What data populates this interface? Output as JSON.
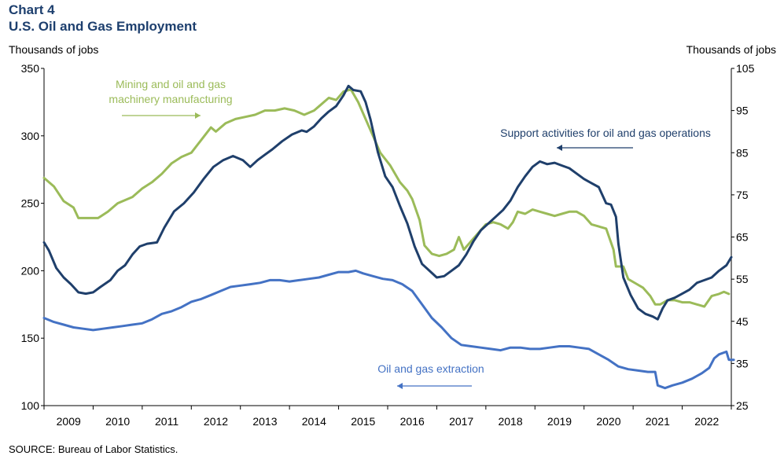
{
  "header": {
    "chart_number": "Chart 4",
    "title": "U.S. Oil and Gas Employment"
  },
  "axes": {
    "left_title": "Thousands  of jobs",
    "right_title": "Thousands  of jobs"
  },
  "source": "SOURCE: Bureau of Labor Statistics.",
  "colors": {
    "mining": "#9bbb59",
    "support": "#1f3f6b",
    "extraction": "#4472c4",
    "title": "#1d3f6e"
  },
  "chart_data": {
    "type": "line",
    "x_labels": [
      "2009",
      "2010",
      "2011",
      "2012",
      "2013",
      "2014",
      "2015",
      "2016",
      "2017",
      "2018",
      "2019",
      "2020",
      "2021",
      "2022"
    ],
    "x_range": [
      2008.5,
      2022.5
    ],
    "left_axis": {
      "ylim": [
        100,
        350
      ],
      "ticks": [
        100,
        150,
        200,
        250,
        300,
        350
      ]
    },
    "right_axis": {
      "ylim": [
        25,
        105
      ],
      "ticks": [
        25,
        35,
        45,
        55,
        65,
        75,
        85,
        95,
        105
      ]
    },
    "series": [
      {
        "name": "Mining and oil and gas machinery manufacturing",
        "axis": "right",
        "color": "#9bbb59",
        "points": [
          [
            2008.5,
            79
          ],
          [
            2008.7,
            77
          ],
          [
            2008.9,
            73.5
          ],
          [
            2009.1,
            72
          ],
          [
            2009.2,
            69.5
          ],
          [
            2009.4,
            69.5
          ],
          [
            2009.6,
            69.5
          ],
          [
            2009.8,
            71
          ],
          [
            2010.0,
            73
          ],
          [
            2010.3,
            74.5
          ],
          [
            2010.5,
            76.5
          ],
          [
            2010.7,
            78
          ],
          [
            2010.9,
            80
          ],
          [
            2011.1,
            82.5
          ],
          [
            2011.3,
            84
          ],
          [
            2011.5,
            85
          ],
          [
            2011.7,
            88
          ],
          [
            2011.9,
            91
          ],
          [
            2012.0,
            90
          ],
          [
            2012.2,
            92
          ],
          [
            2012.4,
            93
          ],
          [
            2012.6,
            93.5
          ],
          [
            2012.8,
            94
          ],
          [
            2013.0,
            95
          ],
          [
            2013.2,
            95
          ],
          [
            2013.4,
            95.5
          ],
          [
            2013.6,
            95
          ],
          [
            2013.8,
            94
          ],
          [
            2014.0,
            95
          ],
          [
            2014.1,
            96
          ],
          [
            2014.3,
            98
          ],
          [
            2014.45,
            97.5
          ],
          [
            2014.6,
            99.5
          ],
          [
            2014.75,
            100
          ],
          [
            2014.9,
            97
          ],
          [
            2015.05,
            93
          ],
          [
            2015.2,
            89
          ],
          [
            2015.35,
            85
          ],
          [
            2015.55,
            82
          ],
          [
            2015.75,
            78
          ],
          [
            2015.9,
            76
          ],
          [
            2016.0,
            74
          ],
          [
            2016.15,
            69
          ],
          [
            2016.25,
            63
          ],
          [
            2016.4,
            61
          ],
          [
            2016.55,
            60.5
          ],
          [
            2016.7,
            61
          ],
          [
            2016.85,
            62
          ],
          [
            2016.95,
            65
          ],
          [
            2017.05,
            62
          ],
          [
            2017.2,
            64
          ],
          [
            2017.35,
            66
          ],
          [
            2017.5,
            68
          ],
          [
            2017.65,
            68.5
          ],
          [
            2017.8,
            68
          ],
          [
            2017.95,
            67
          ],
          [
            2018.05,
            68.5
          ],
          [
            2018.15,
            71
          ],
          [
            2018.3,
            70.5
          ],
          [
            2018.45,
            71.5
          ],
          [
            2018.6,
            71
          ],
          [
            2018.75,
            70.5
          ],
          [
            2018.9,
            70
          ],
          [
            2019.05,
            70.5
          ],
          [
            2019.2,
            71
          ],
          [
            2019.35,
            71
          ],
          [
            2019.5,
            70
          ],
          [
            2019.65,
            68
          ],
          [
            2019.8,
            67.5
          ],
          [
            2019.95,
            67
          ],
          [
            2020.1,
            62
          ],
          [
            2020.15,
            58
          ],
          [
            2020.3,
            58
          ],
          [
            2020.4,
            55
          ],
          [
            2020.55,
            54
          ],
          [
            2020.7,
            53
          ],
          [
            2020.85,
            51
          ],
          [
            2020.95,
            49
          ],
          [
            2021.05,
            49
          ],
          [
            2021.2,
            50
          ],
          [
            2021.35,
            50
          ],
          [
            2021.5,
            49.5
          ],
          [
            2021.65,
            49.5
          ],
          [
            2021.8,
            49
          ],
          [
            2021.95,
            48.5
          ],
          [
            2022.1,
            51
          ],
          [
            2022.25,
            51.5
          ],
          [
            2022.35,
            52
          ],
          [
            2022.45,
            51.5
          ]
        ]
      },
      {
        "name": "Support activities for oil and gas operations",
        "axis": "left",
        "color": "#1f3f6b",
        "points": [
          [
            2008.5,
            221
          ],
          [
            2008.6,
            215
          ],
          [
            2008.75,
            202
          ],
          [
            2008.9,
            195
          ],
          [
            2009.05,
            190
          ],
          [
            2009.2,
            184
          ],
          [
            2009.35,
            183
          ],
          [
            2009.5,
            184
          ],
          [
            2009.65,
            188
          ],
          [
            2009.85,
            193
          ],
          [
            2010.0,
            200
          ],
          [
            2010.15,
            204
          ],
          [
            2010.3,
            212
          ],
          [
            2010.45,
            218
          ],
          [
            2010.6,
            220
          ],
          [
            2010.8,
            221
          ],
          [
            2010.95,
            232
          ],
          [
            2011.15,
            244
          ],
          [
            2011.35,
            250
          ],
          [
            2011.55,
            258
          ],
          [
            2011.75,
            268
          ],
          [
            2011.95,
            277
          ],
          [
            2012.15,
            282
          ],
          [
            2012.35,
            285
          ],
          [
            2012.55,
            282
          ],
          [
            2012.7,
            277
          ],
          [
            2012.85,
            282
          ],
          [
            2013.0,
            286
          ],
          [
            2013.15,
            290
          ],
          [
            2013.35,
            296
          ],
          [
            2013.55,
            301
          ],
          [
            2013.75,
            304
          ],
          [
            2013.85,
            303
          ],
          [
            2014.0,
            307
          ],
          [
            2014.15,
            313
          ],
          [
            2014.3,
            318
          ],
          [
            2014.45,
            322
          ],
          [
            2014.6,
            330
          ],
          [
            2014.7,
            337
          ],
          [
            2014.8,
            334
          ],
          [
            2014.95,
            333
          ],
          [
            2015.05,
            325
          ],
          [
            2015.15,
            312
          ],
          [
            2015.3,
            288
          ],
          [
            2015.45,
            270
          ],
          [
            2015.6,
            262
          ],
          [
            2015.75,
            248
          ],
          [
            2015.9,
            235
          ],
          [
            2016.05,
            218
          ],
          [
            2016.2,
            205
          ],
          [
            2016.35,
            200
          ],
          [
            2016.5,
            195
          ],
          [
            2016.65,
            196
          ],
          [
            2016.8,
            200
          ],
          [
            2016.95,
            204
          ],
          [
            2017.1,
            212
          ],
          [
            2017.25,
            222
          ],
          [
            2017.4,
            230
          ],
          [
            2017.55,
            235
          ],
          [
            2017.7,
            240
          ],
          [
            2017.85,
            245
          ],
          [
            2018.0,
            252
          ],
          [
            2018.15,
            262
          ],
          [
            2018.3,
            270
          ],
          [
            2018.45,
            277
          ],
          [
            2018.6,
            281
          ],
          [
            2018.75,
            279
          ],
          [
            2018.9,
            280
          ],
          [
            2019.05,
            278
          ],
          [
            2019.2,
            276
          ],
          [
            2019.35,
            272
          ],
          [
            2019.5,
            268
          ],
          [
            2019.65,
            265
          ],
          [
            2019.8,
            262
          ],
          [
            2019.95,
            250
          ],
          [
            2020.05,
            249
          ],
          [
            2020.15,
            240
          ],
          [
            2020.2,
            220
          ],
          [
            2020.3,
            195
          ],
          [
            2020.45,
            182
          ],
          [
            2020.6,
            172
          ],
          [
            2020.75,
            168
          ],
          [
            2020.9,
            166
          ],
          [
            2021.0,
            164
          ],
          [
            2021.1,
            172
          ],
          [
            2021.2,
            178
          ],
          [
            2021.35,
            180
          ],
          [
            2021.5,
            183
          ],
          [
            2021.65,
            186
          ],
          [
            2021.8,
            191
          ],
          [
            2021.95,
            193
          ],
          [
            2022.1,
            195
          ],
          [
            2022.25,
            200
          ],
          [
            2022.4,
            204
          ],
          [
            2022.5,
            210
          ]
        ]
      },
      {
        "name": "Oil and gas extraction",
        "axis": "left",
        "color": "#4472c4",
        "points": [
          [
            2008.5,
            165
          ],
          [
            2008.7,
            162
          ],
          [
            2008.9,
            160
          ],
          [
            2009.1,
            158
          ],
          [
            2009.3,
            157
          ],
          [
            2009.5,
            156
          ],
          [
            2009.7,
            157
          ],
          [
            2009.9,
            158
          ],
          [
            2010.1,
            159
          ],
          [
            2010.3,
            160
          ],
          [
            2010.5,
            161
          ],
          [
            2010.7,
            164
          ],
          [
            2010.9,
            168
          ],
          [
            2011.1,
            170
          ],
          [
            2011.3,
            173
          ],
          [
            2011.5,
            177
          ],
          [
            2011.7,
            179
          ],
          [
            2011.9,
            182
          ],
          [
            2012.1,
            185
          ],
          [
            2012.3,
            188
          ],
          [
            2012.5,
            189
          ],
          [
            2012.7,
            190
          ],
          [
            2012.9,
            191
          ],
          [
            2013.1,
            193
          ],
          [
            2013.3,
            193
          ],
          [
            2013.5,
            192
          ],
          [
            2013.7,
            193
          ],
          [
            2013.9,
            194
          ],
          [
            2014.1,
            195
          ],
          [
            2014.3,
            197
          ],
          [
            2014.5,
            199
          ],
          [
            2014.7,
            199
          ],
          [
            2014.85,
            200
          ],
          [
            2015.0,
            198
          ],
          [
            2015.2,
            196
          ],
          [
            2015.4,
            194
          ],
          [
            2015.6,
            193
          ],
          [
            2015.8,
            190
          ],
          [
            2016.0,
            185
          ],
          [
            2016.2,
            175
          ],
          [
            2016.4,
            165
          ],
          [
            2016.6,
            158
          ],
          [
            2016.8,
            150
          ],
          [
            2017.0,
            145
          ],
          [
            2017.2,
            144
          ],
          [
            2017.4,
            143
          ],
          [
            2017.6,
            142
          ],
          [
            2017.8,
            141
          ],
          [
            2018.0,
            143
          ],
          [
            2018.2,
            143
          ],
          [
            2018.4,
            142
          ],
          [
            2018.6,
            142
          ],
          [
            2018.8,
            143
          ],
          [
            2019.0,
            144
          ],
          [
            2019.2,
            144
          ],
          [
            2019.4,
            143
          ],
          [
            2019.6,
            142
          ],
          [
            2019.8,
            138
          ],
          [
            2020.0,
            134
          ],
          [
            2020.2,
            129
          ],
          [
            2020.4,
            127
          ],
          [
            2020.6,
            126
          ],
          [
            2020.8,
            125
          ],
          [
            2020.95,
            125
          ],
          [
            2021.0,
            115
          ],
          [
            2021.15,
            113
          ],
          [
            2021.3,
            115
          ],
          [
            2021.5,
            117
          ],
          [
            2021.7,
            120
          ],
          [
            2021.9,
            124
          ],
          [
            2022.05,
            128
          ],
          [
            2022.15,
            135
          ],
          [
            2022.25,
            138
          ],
          [
            2022.4,
            140
          ],
          [
            2022.45,
            134
          ],
          [
            2022.55,
            134
          ]
        ]
      }
    ],
    "annotations": [
      {
        "text_lines": [
          "Mining and oil and gas",
          "machinery manufacturing"
        ],
        "color": "#9bbb59"
      },
      {
        "text_lines": [
          "Support activities for oil and gas operations"
        ],
        "color": "#1f3f6b"
      },
      {
        "text_lines": [
          "Oil and gas extraction"
        ],
        "color": "#4472c4"
      }
    ]
  }
}
